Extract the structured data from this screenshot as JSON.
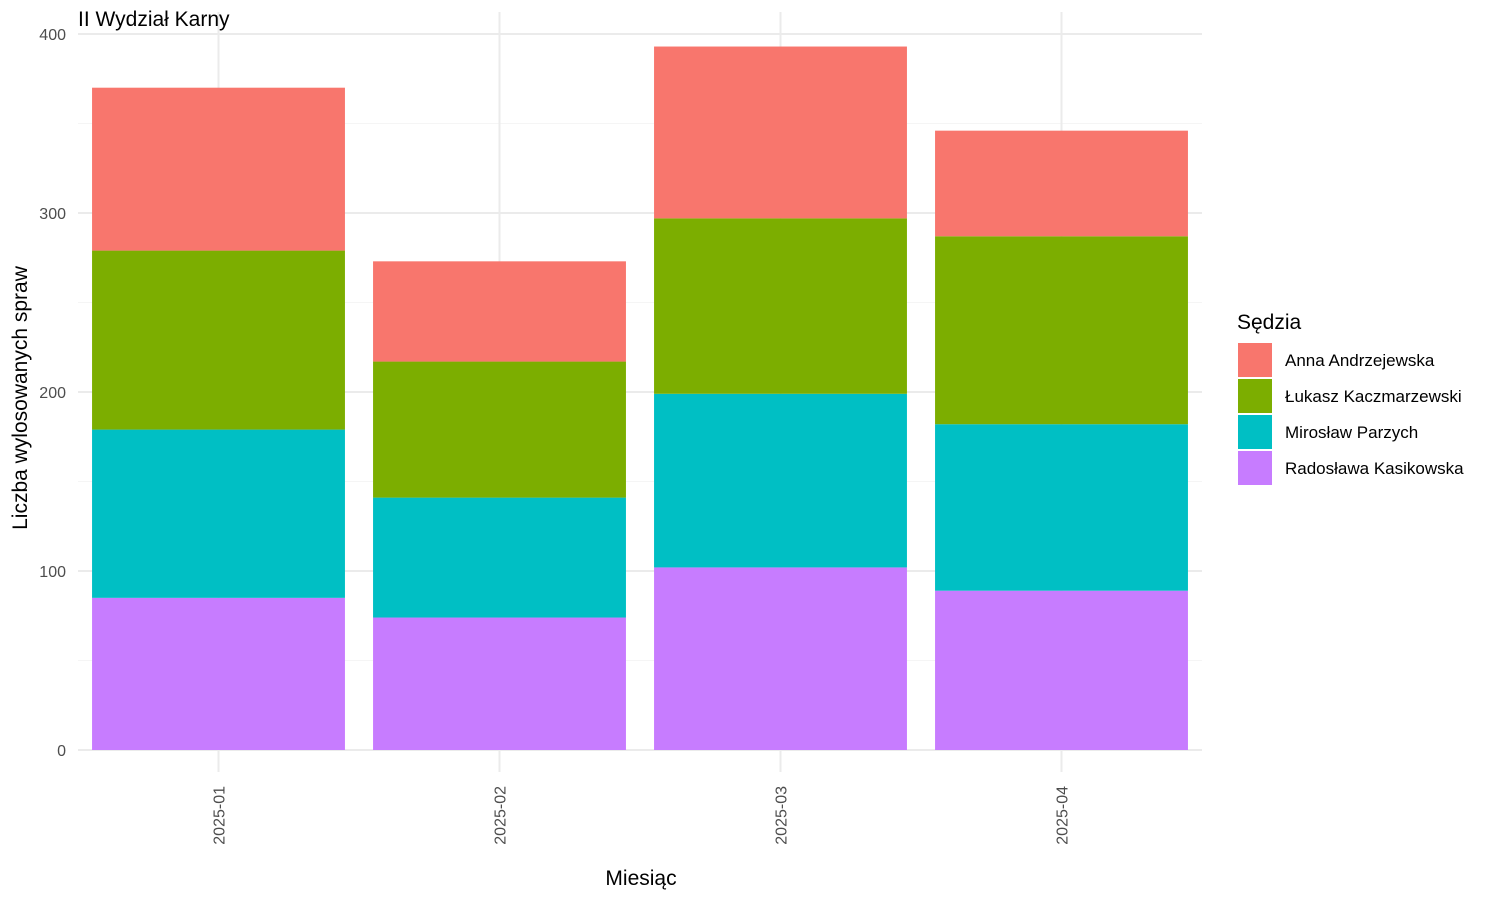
{
  "chart_data": {
    "type": "bar",
    "stacked": true,
    "title": "II Wydział Karny",
    "xlabel": "Miesiąc",
    "ylabel": "Liczba wylosowanych spraw",
    "categories": [
      "2025-01",
      "2025-02",
      "2025-03",
      "2025-04"
    ],
    "ylim": [
      0,
      400
    ],
    "yticks": [
      0,
      100,
      200,
      300,
      400
    ],
    "grid": true,
    "legend": {
      "title": "Sędzia",
      "position": "right"
    },
    "stack_order": [
      "Radosława Kasikowska",
      "Mirosław Parzych",
      "Łukasz Kaczmarzewski",
      "Anna Andrzejewska"
    ],
    "series": [
      {
        "name": "Anna Andrzejewska",
        "color": "#F8766D",
        "values": [
          91,
          56,
          96,
          59
        ]
      },
      {
        "name": "Łukasz Kaczmarzewski",
        "color": "#7CAE00",
        "values": [
          100,
          76,
          98,
          105
        ]
      },
      {
        "name": "Mirosław Parzych",
        "color": "#00BFC4",
        "values": [
          94,
          67,
          97,
          93
        ]
      },
      {
        "name": "Radosława Kasikowska",
        "color": "#C77CFF",
        "values": [
          85,
          74,
          102,
          89
        ]
      }
    ]
  }
}
